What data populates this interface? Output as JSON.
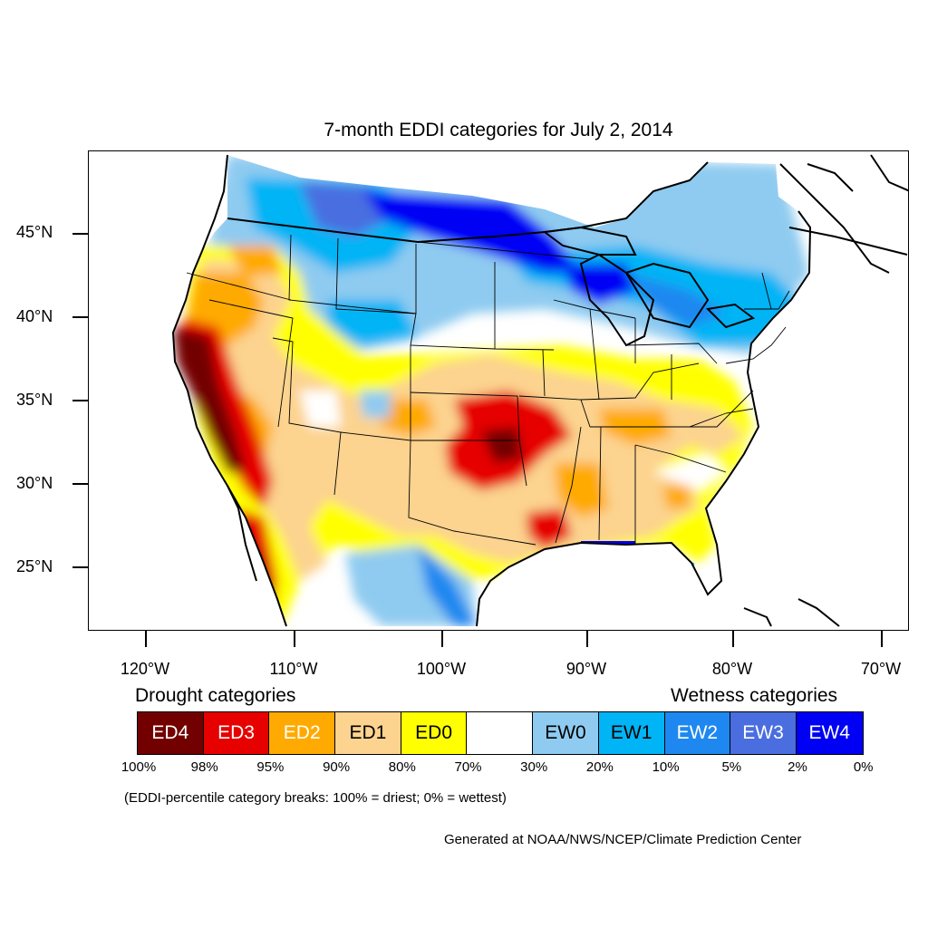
{
  "title": "7-month EDDI categories for July 2, 2014",
  "lat_labels": [
    "45°N",
    "40°N",
    "35°N",
    "30°N",
    "25°N"
  ],
  "lon_labels": [
    "120°W",
    "110°W",
    "100°W",
    "90°W",
    "80°W",
    "70°W"
  ],
  "drought_heading": "Drought categories",
  "wetness_heading": "Wetness categories",
  "legend": [
    {
      "label": "ED4",
      "color": "#730000",
      "text_color": "#ffffff"
    },
    {
      "label": "ED3",
      "color": "#e60000",
      "text_color": "#ffffff"
    },
    {
      "label": "ED2",
      "color": "#ffaa00",
      "text_color": "#ffffff"
    },
    {
      "label": "ED1",
      "color": "#fcd38f",
      "text_color": "#000000"
    },
    {
      "label": "ED0",
      "color": "#ffff00",
      "text_color": "#000000"
    },
    {
      "label": "",
      "color": "#ffffff",
      "text_color": "#000000"
    },
    {
      "label": "EW0",
      "color": "#8fcbf0",
      "text_color": "#000000"
    },
    {
      "label": "EW1",
      "color": "#00b4f5",
      "text_color": "#000000"
    },
    {
      "label": "EW2",
      "color": "#1e88f0",
      "text_color": "#ffffff"
    },
    {
      "label": "EW3",
      "color": "#4a6ee0",
      "text_color": "#ffffff"
    },
    {
      "label": "EW4",
      "color": "#0000f5",
      "text_color": "#ffffff"
    }
  ],
  "percent_breaks": [
    "100%",
    "98%",
    "95%",
    "90%",
    "80%",
    "70%",
    "30%",
    "20%",
    "10%",
    "5%",
    "2%",
    "0%"
  ],
  "note": "(EDDI-percentile category breaks: 100% = driest; 0% = wettest)",
  "credit": "Generated at NOAA/NWS/NCEP/Climate Prediction Center"
}
